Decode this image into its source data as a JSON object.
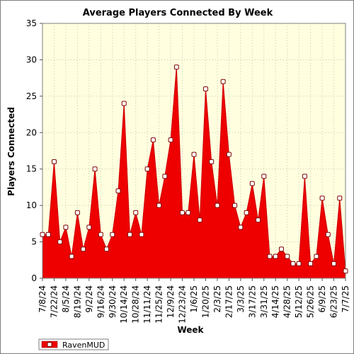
{
  "chart_data": {
    "type": "area",
    "title": "Average Players Connected By Week",
    "xlabel": "Week",
    "ylabel": "Players Connected",
    "ylim": [
      0,
      35
    ],
    "yticks": [
      0,
      5,
      10,
      15,
      20,
      25,
      30,
      35
    ],
    "grid": true,
    "legend_position": "bottom-left",
    "colors": {
      "area": "#ee0000",
      "background": "#ffffe0",
      "marker_fill": "#ffffff",
      "marker_stroke": "#7f0000"
    },
    "x": [
      "7/8/24",
      "7/15/24",
      "7/22/24",
      "7/29/24",
      "8/5/24",
      "8/12/24",
      "8/19/24",
      "8/26/24",
      "9/2/24",
      "9/9/24",
      "9/16/24",
      "9/23/24",
      "9/30/24",
      "10/7/24",
      "10/14/24",
      "10/21/24",
      "10/28/24",
      "11/4/24",
      "11/11/24",
      "11/18/24",
      "11/25/24",
      "12/2/24",
      "12/9/24",
      "12/16/24",
      "12/23/24",
      "12/30/24",
      "1/6/25",
      "1/13/25",
      "1/20/25",
      "1/27/25",
      "2/3/25",
      "2/10/25",
      "2/17/25",
      "2/24/25",
      "3/3/25",
      "3/10/25",
      "3/17/25",
      "3/24/25",
      "3/31/25",
      "4/7/25",
      "4/14/25",
      "4/21/25",
      "4/28/25",
      "5/5/25",
      "5/12/25",
      "5/19/25",
      "5/26/25",
      "6/2/25",
      "6/9/25",
      "6/16/25",
      "6/23/25",
      "6/30/25",
      "7/7/25"
    ],
    "x_tick_labels": [
      "7/8/24",
      "7/22/24",
      "8/5/24",
      "8/19/24",
      "9/2/24",
      "9/16/24",
      "9/30/24",
      "10/14/24",
      "10/28/24",
      "11/11/24",
      "11/25/24",
      "12/9/24",
      "12/23/24",
      "1/6/25",
      "1/20/25",
      "2/3/25",
      "2/17/25",
      "3/3/25",
      "3/17/25",
      "3/31/25",
      "4/14/25",
      "4/28/25",
      "5/12/25",
      "5/26/25",
      "6/9/25",
      "6/23/25",
      "7/7/25"
    ],
    "series": [
      {
        "name": "RavenMUD",
        "values": [
          6,
          6,
          16,
          5,
          7,
          3,
          9,
          4,
          7,
          15,
          6,
          4,
          6,
          12,
          24,
          6,
          9,
          6,
          15,
          19,
          10,
          14,
          19,
          29,
          9,
          9,
          17,
          8,
          26,
          16,
          10,
          27,
          17,
          10,
          7,
          9,
          13,
          8,
          14,
          3,
          3,
          4,
          3,
          2,
          2,
          14,
          2,
          3,
          11,
          6,
          2,
          11,
          1
        ]
      }
    ]
  }
}
